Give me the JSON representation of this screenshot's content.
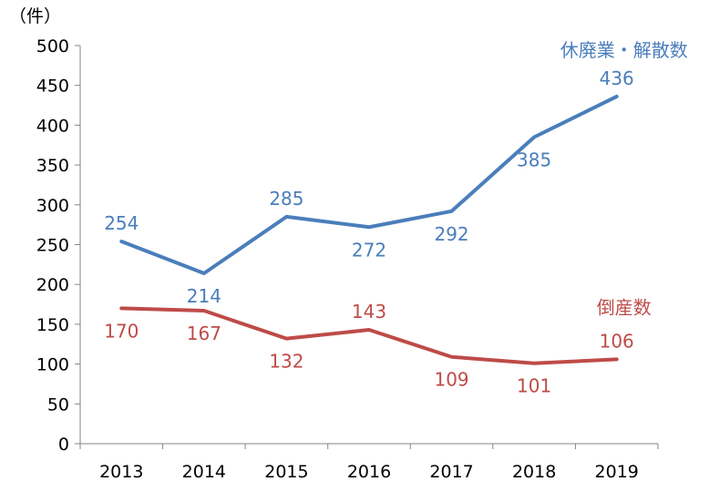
{
  "chart_data": {
    "type": "line",
    "unit_label": "（件）",
    "categories": [
      "2013",
      "2014",
      "2015",
      "2016",
      "2017",
      "2018",
      "2019"
    ],
    "ylim": [
      0,
      500
    ],
    "yticks": [
      0,
      50,
      100,
      150,
      200,
      250,
      300,
      350,
      400,
      450,
      500
    ],
    "grid": false,
    "series": [
      {
        "name": "休廃業・解散数",
        "color": "#4a7ebb",
        "values": [
          254,
          214,
          285,
          272,
          292,
          385,
          436
        ],
        "label_positions": [
          "above",
          "below",
          "above",
          "below",
          "below",
          "below",
          "above"
        ]
      },
      {
        "name": "倒産数",
        "color": "#be4b48",
        "values": [
          170,
          167,
          132,
          143,
          109,
          101,
          106
        ],
        "label_positions": [
          "below",
          "below",
          "below",
          "above",
          "below",
          "below",
          "above"
        ]
      }
    ]
  }
}
